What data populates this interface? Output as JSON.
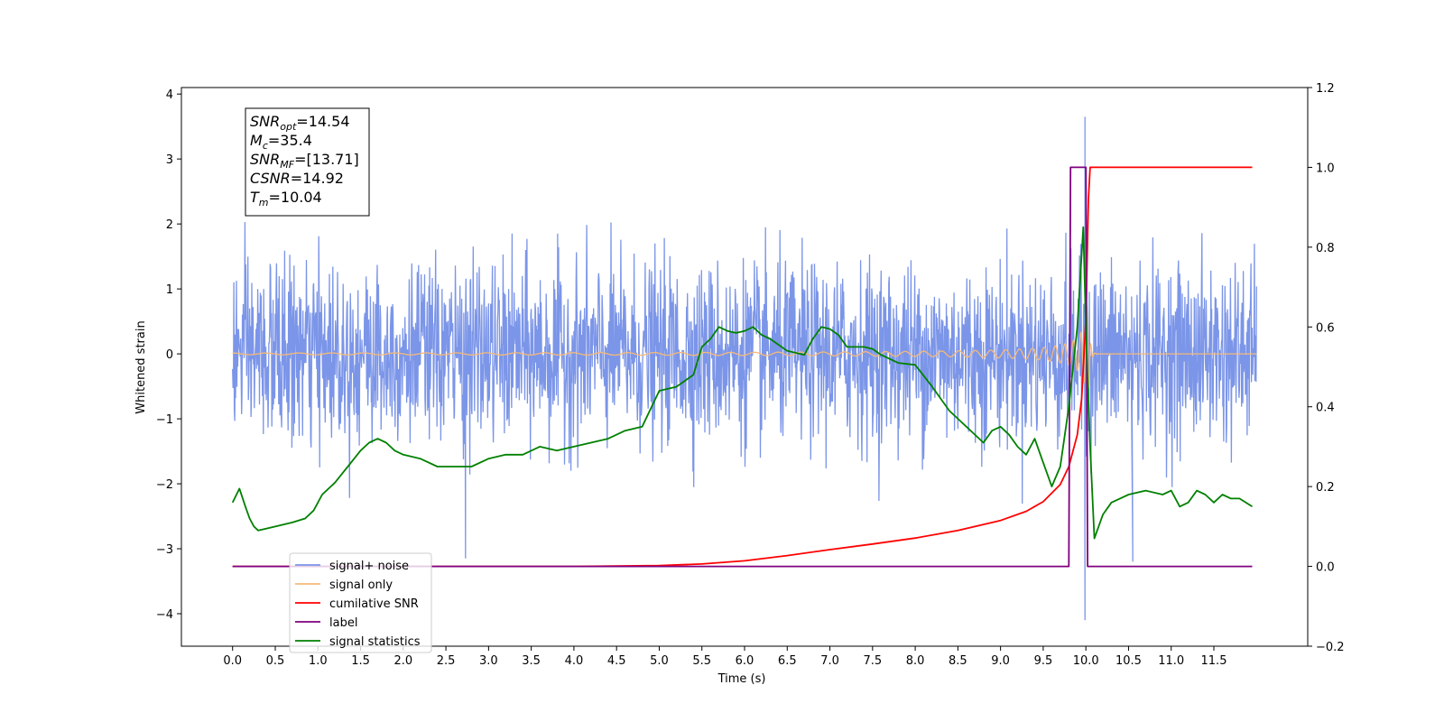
{
  "chart_data": {
    "type": "line",
    "xlabel": "Time (s)",
    "ylabel_left": "Whitened strain",
    "ylabel_right": "",
    "xlim": [
      -0.6,
      12.6
    ],
    "ylim_left": [
      -4.5,
      4.1
    ],
    "ylim_right": [
      -0.2,
      1.2
    ],
    "x_ticks": [
      "0.0",
      "0.5",
      "1.0",
      "1.5",
      "2.0",
      "2.5",
      "3.0",
      "3.5",
      "4.0",
      "4.5",
      "5.0",
      "5.5",
      "6.0",
      "6.5",
      "7.0",
      "7.5",
      "8.0",
      "8.5",
      "9.0",
      "9.5",
      "10.0",
      "10.5",
      "11.0",
      "11.5"
    ],
    "y_ticks_left": [
      "−4",
      "−3",
      "−2",
      "−1",
      "0",
      "1",
      "2",
      "3",
      "4"
    ],
    "y_ticks_right": [
      "−0.2",
      "0.0",
      "0.2",
      "0.4",
      "0.6",
      "0.8",
      "1.0",
      "1.2"
    ],
    "grid": false,
    "legend_position": "lower-left",
    "annotation": [
      {
        "sym": "SNR",
        "sub": "opt",
        "value": "=14.54"
      },
      {
        "sym": "M",
        "sub": "c",
        "value": "=35.4"
      },
      {
        "sym": "SNR",
        "sub": "MF",
        "value": "=[13.71]"
      },
      {
        "sym": "CSNR",
        "sub": "",
        "value": "=14.92"
      },
      {
        "sym": "T",
        "sub": "m",
        "value": "=10.04"
      }
    ],
    "series": [
      {
        "name": "signal+ noise",
        "color": "#7b95e8",
        "axis": "left",
        "x_range": [
          0.0,
          12.0
        ],
        "envelope_typical": 1.5,
        "peaks": [
          [
            9.99,
            3.65
          ],
          [
            9.99,
            -4.1
          ],
          [
            2.73,
            -3.15
          ],
          [
            10.55,
            -3.2
          ]
        ]
      },
      {
        "name": "signal only",
        "color": "#f5b97a",
        "axis": "left",
        "merger_time": 10.02,
        "amplitude_at_merger": 1.0
      },
      {
        "name": "cumilative SNR",
        "color": "#ff0000",
        "axis": "right",
        "x": [
          0.0,
          4.0,
          5.0,
          5.5,
          6.0,
          6.5,
          7.0,
          7.5,
          8.0,
          8.5,
          9.0,
          9.3,
          9.5,
          9.7,
          9.8,
          9.9,
          9.95,
          10.0,
          10.03,
          10.05,
          11.95
        ],
        "y": [
          0.0,
          0.0,
          0.002,
          0.006,
          0.014,
          0.027,
          0.042,
          0.056,
          0.071,
          0.09,
          0.115,
          0.138,
          0.162,
          0.205,
          0.25,
          0.33,
          0.42,
          0.62,
          0.92,
          1.0,
          1.0
        ]
      },
      {
        "name": "label",
        "color": "#7f007f",
        "axis": "right",
        "x": [
          0.0,
          9.8,
          9.82,
          10.0,
          10.02,
          11.95
        ],
        "y": [
          0.0,
          0.0,
          1.0,
          1.0,
          0.0,
          0.0
        ]
      },
      {
        "name": "signal statistics",
        "color": "#008000",
        "axis": "right",
        "x": [
          0.0,
          0.08,
          0.15,
          0.2,
          0.25,
          0.3,
          0.4,
          0.5,
          0.7,
          0.85,
          0.95,
          1.05,
          1.2,
          1.35,
          1.5,
          1.6,
          1.7,
          1.8,
          1.9,
          2.0,
          2.2,
          2.4,
          2.6,
          2.8,
          3.0,
          3.2,
          3.4,
          3.6,
          3.8,
          4.0,
          4.2,
          4.4,
          4.6,
          4.8,
          5.0,
          5.2,
          5.4,
          5.5,
          5.6,
          5.7,
          5.8,
          5.9,
          6.0,
          6.1,
          6.2,
          6.3,
          6.5,
          6.7,
          6.8,
          6.9,
          7.0,
          7.1,
          7.2,
          7.4,
          7.5,
          7.6,
          7.8,
          8.0,
          8.2,
          8.4,
          8.5,
          8.6,
          8.8,
          8.9,
          9.0,
          9.1,
          9.2,
          9.3,
          9.4,
          9.5,
          9.6,
          9.7,
          9.8,
          9.9,
          9.97,
          10.0,
          10.05,
          10.1,
          10.2,
          10.3,
          10.4,
          10.5,
          10.7,
          10.9,
          11.0,
          11.1,
          11.2,
          11.3,
          11.4,
          11.5,
          11.6,
          11.7,
          11.8,
          11.95
        ],
        "y": [
          0.16,
          0.195,
          0.15,
          0.12,
          0.1,
          0.09,
          0.095,
          0.1,
          0.11,
          0.12,
          0.14,
          0.18,
          0.21,
          0.25,
          0.29,
          0.31,
          0.32,
          0.31,
          0.29,
          0.28,
          0.27,
          0.25,
          0.25,
          0.25,
          0.27,
          0.28,
          0.28,
          0.3,
          0.29,
          0.3,
          0.31,
          0.32,
          0.34,
          0.35,
          0.44,
          0.45,
          0.48,
          0.55,
          0.57,
          0.6,
          0.59,
          0.585,
          0.59,
          0.6,
          0.58,
          0.57,
          0.54,
          0.53,
          0.57,
          0.6,
          0.595,
          0.58,
          0.55,
          0.55,
          0.545,
          0.53,
          0.51,
          0.505,
          0.45,
          0.39,
          0.37,
          0.35,
          0.31,
          0.34,
          0.35,
          0.33,
          0.3,
          0.28,
          0.32,
          0.26,
          0.2,
          0.25,
          0.4,
          0.6,
          0.85,
          0.6,
          0.3,
          0.07,
          0.13,
          0.16,
          0.17,
          0.18,
          0.19,
          0.18,
          0.19,
          0.15,
          0.16,
          0.19,
          0.18,
          0.16,
          0.18,
          0.17,
          0.17,
          0.15
        ]
      }
    ]
  }
}
